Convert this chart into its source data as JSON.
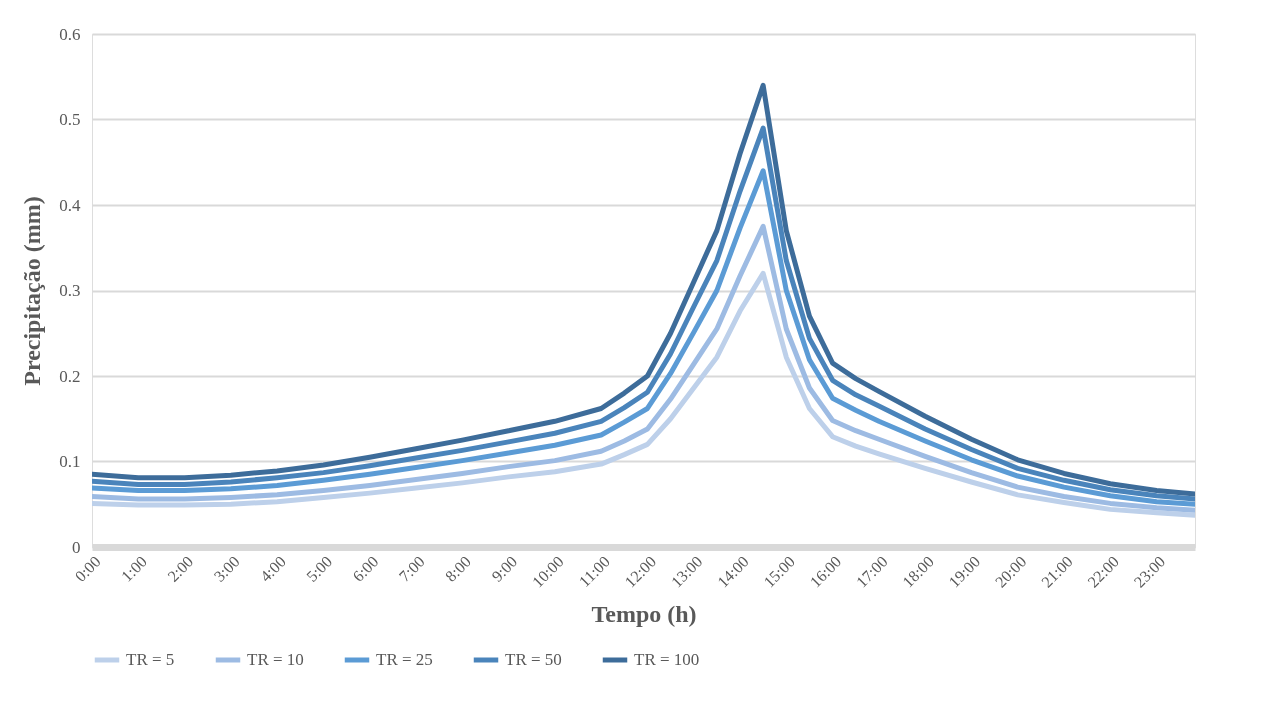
{
  "chart_data": {
    "type": "line",
    "xlabel": "Tempo (h)",
    "ylabel": "Precipitação (mm)",
    "x": [
      0,
      1,
      2,
      3,
      4,
      5,
      6,
      7,
      8,
      9,
      10,
      11,
      11.5,
      12,
      12.5,
      13,
      13.5,
      14,
      14.5,
      15,
      15.5,
      16,
      16.5,
      17,
      18,
      19,
      20,
      21,
      22,
      23,
      23.83
    ],
    "xlim": [
      0,
      23.83
    ],
    "xticks": [
      {
        "value": 0,
        "label": "0:00"
      },
      {
        "value": 1,
        "label": "1:00"
      },
      {
        "value": 2,
        "label": "2:00"
      },
      {
        "value": 3,
        "label": "3:00"
      },
      {
        "value": 4,
        "label": "4:00"
      },
      {
        "value": 5,
        "label": "5:00"
      },
      {
        "value": 6,
        "label": "6:00"
      },
      {
        "value": 7,
        "label": "7:00"
      },
      {
        "value": 8,
        "label": "8:00"
      },
      {
        "value": 9,
        "label": "9:00"
      },
      {
        "value": 10,
        "label": "10:00"
      },
      {
        "value": 11,
        "label": "11:00"
      },
      {
        "value": 12,
        "label": "12:00"
      },
      {
        "value": 13,
        "label": "13:00"
      },
      {
        "value": 14,
        "label": "14:00"
      },
      {
        "value": 15,
        "label": "15:00"
      },
      {
        "value": 16,
        "label": "16:00"
      },
      {
        "value": 17,
        "label": "17:00"
      },
      {
        "value": 18,
        "label": "18:00"
      },
      {
        "value": 19,
        "label": "19:00"
      },
      {
        "value": 20,
        "label": "20:00"
      },
      {
        "value": 21,
        "label": "21:00"
      },
      {
        "value": 22,
        "label": "22:00"
      },
      {
        "value": 23,
        "label": "23:00"
      }
    ],
    "ylim": [
      0,
      0.6
    ],
    "yticks": [
      0,
      0.1,
      0.2,
      0.3,
      0.4,
      0.5,
      0.6
    ],
    "grid": "y",
    "legend": "bottom",
    "series": [
      {
        "name": "TR = 5",
        "color": "#bdd0ea",
        "values": [
          0.051,
          0.049,
          0.049,
          0.05,
          0.053,
          0.058,
          0.063,
          0.069,
          0.075,
          0.082,
          0.088,
          0.097,
          0.108,
          0.12,
          0.15,
          0.186,
          0.222,
          0.276,
          0.32,
          0.222,
          0.162,
          0.129,
          0.118,
          0.109,
          0.092,
          0.076,
          0.061,
          0.052,
          0.044,
          0.04,
          0.037
        ]
      },
      {
        "name": "TR = 10",
        "color": "#9dbbe3",
        "values": [
          0.059,
          0.056,
          0.056,
          0.058,
          0.061,
          0.066,
          0.072,
          0.079,
          0.086,
          0.094,
          0.101,
          0.112,
          0.124,
          0.138,
          0.173,
          0.214,
          0.255,
          0.317,
          0.375,
          0.255,
          0.186,
          0.148,
          0.136,
          0.126,
          0.106,
          0.087,
          0.07,
          0.059,
          0.051,
          0.046,
          0.043
        ]
      },
      {
        "name": "TR = 25",
        "color": "#5b9bd5",
        "values": [
          0.069,
          0.066,
          0.066,
          0.068,
          0.072,
          0.078,
          0.085,
          0.093,
          0.101,
          0.11,
          0.119,
          0.131,
          0.146,
          0.162,
          0.203,
          0.251,
          0.3,
          0.373,
          0.44,
          0.3,
          0.219,
          0.174,
          0.16,
          0.147,
          0.124,
          0.102,
          0.083,
          0.07,
          0.06,
          0.053,
          0.05
        ]
      },
      {
        "name": "TR = 50",
        "color": "#4a84bb",
        "values": [
          0.077,
          0.073,
          0.073,
          0.076,
          0.081,
          0.087,
          0.095,
          0.104,
          0.113,
          0.123,
          0.133,
          0.147,
          0.163,
          0.181,
          0.226,
          0.281,
          0.335,
          0.416,
          0.49,
          0.335,
          0.244,
          0.195,
          0.178,
          0.165,
          0.138,
          0.114,
          0.092,
          0.078,
          0.067,
          0.06,
          0.056
        ]
      },
      {
        "name": "TR = 100",
        "color": "#3d6c9a",
        "values": [
          0.085,
          0.081,
          0.081,
          0.084,
          0.089,
          0.096,
          0.105,
          0.115,
          0.125,
          0.136,
          0.147,
          0.162,
          0.18,
          0.2,
          0.25,
          0.31,
          0.37,
          0.46,
          0.54,
          0.37,
          0.27,
          0.215,
          0.197,
          0.182,
          0.153,
          0.126,
          0.102,
          0.086,
          0.074,
          0.066,
          0.062
        ]
      }
    ]
  }
}
